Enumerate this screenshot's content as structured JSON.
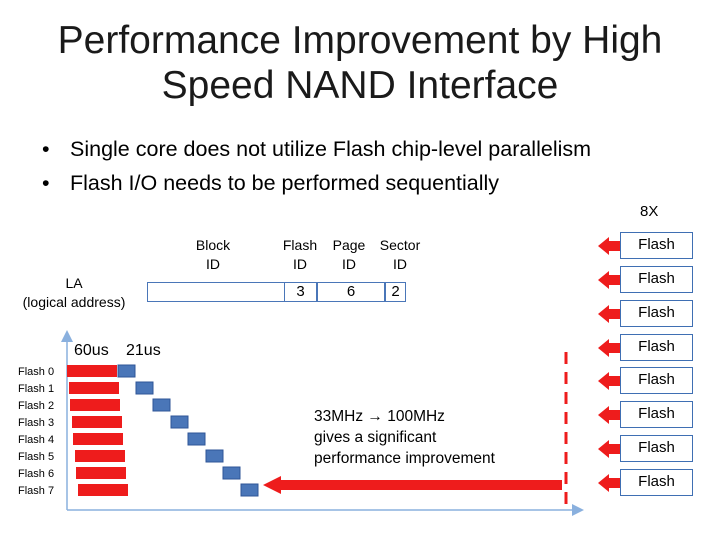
{
  "title_line1": "Performance Improvement by High",
  "title_line2": "Speed NAND Interface",
  "bullets": [
    "Single core does not utilize Flash chip-level parallelism",
    "Flash I/O needs to be performed sequentially"
  ],
  "address": {
    "la_line1": "LA",
    "la_line2": "(logical address)",
    "headers": {
      "block_1": "Block",
      "block_2": "ID",
      "flash_1": "Flash",
      "flash_2": "ID",
      "page_1": "Page",
      "page_2": "ID",
      "sector_1": "Sector",
      "sector_2": "ID"
    },
    "flash_id_value": "3",
    "page_id_value": "6",
    "sector_id_value": "2"
  },
  "multiplier": "8X",
  "flash_chips": [
    "Flash",
    "Flash",
    "Flash",
    "Flash",
    "Flash",
    "Flash",
    "Flash",
    "Flash"
  ],
  "timeline": {
    "label_60": "60us",
    "label_21": "21us",
    "rows": [
      "Flash 0",
      "Flash 1",
      "Flash 2",
      "Flash 3",
      "Flash 4",
      "Flash 5",
      "Flash 6",
      "Flash 7"
    ]
  },
  "note_line1": "33MHz → 100MHz",
  "note_line2": "gives a significant",
  "note_line3": "performance improvement",
  "colors": {
    "accent_red": "#ee1c1c",
    "accent_blue": "#4a76b8",
    "axis_blue": "#8ab0de"
  }
}
